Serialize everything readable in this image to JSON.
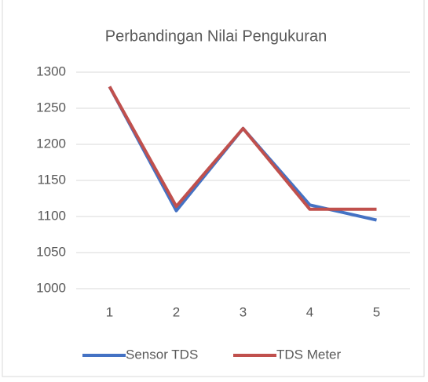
{
  "chart_data": {
    "type": "line",
    "title": "Perbandingan Nilai Pengukuran",
    "categories": [
      "1",
      "2",
      "3",
      "4",
      "5"
    ],
    "series": [
      {
        "name": "Sensor TDS",
        "color": "#4472c4",
        "values": [
          1280,
          1108,
          1222,
          1116,
          1095
        ]
      },
      {
        "name": "TDS Meter",
        "color": "#c0504d",
        "values": [
          1280,
          1114,
          1222,
          1110,
          1110
        ]
      }
    ],
    "ylim": [
      1000,
      1300
    ],
    "yticks": [
      1000,
      1050,
      1100,
      1150,
      1200,
      1250,
      1300
    ],
    "grid": true,
    "legend": "bottom"
  }
}
